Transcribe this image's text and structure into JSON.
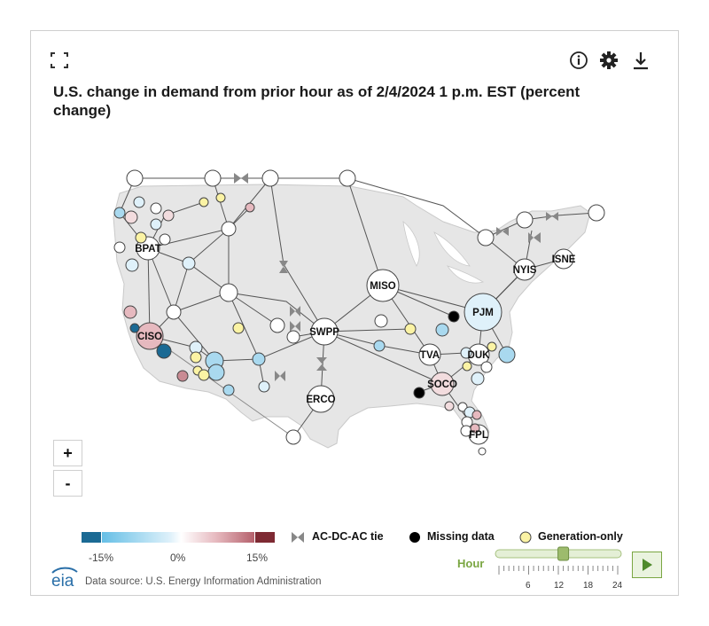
{
  "title": "U.S. change in demand from prior hour as of 2/4/2024 1 p.m. EST (percent change)",
  "toolbar": {
    "fullscreen_icon": "expand-icon",
    "info_icon": "info-icon",
    "settings_icon": "gear-icon",
    "download_icon": "download-icon"
  },
  "zoom": {
    "in_label": "+",
    "out_label": "-"
  },
  "colors": {
    "scale": [
      "#1b6a94",
      "#8fcde8",
      "#dff1fa",
      "#ffffff",
      "#f2dcde",
      "#c98b93",
      "#7e2a33"
    ],
    "generation_only": "#fbf3a4",
    "missing": "#000000",
    "land": "#e6e6e6",
    "accent_green": "#7aa642"
  },
  "legend": {
    "scale_labels": [
      "-15%",
      "0%",
      "15%"
    ],
    "tie_label": "AC-DC-AC tie",
    "missing_label": "Missing data",
    "generation_label": "Generation-only"
  },
  "slider": {
    "label": "Hour",
    "ticks": [
      "6",
      "12",
      "18",
      "24"
    ],
    "value": 13,
    "max": 24,
    "play_icon": "play-icon"
  },
  "footer": {
    "logo": "eia",
    "source": "Data source: U.S. Energy Information Administration"
  },
  "map": {
    "labeled_nodes": [
      "PJM",
      "MISO",
      "SWPP",
      "ERCO",
      "CISO",
      "BPAT",
      "NYIS",
      "ISNE",
      "TVA",
      "DUK",
      "SOCO",
      "FPL"
    ]
  }
}
